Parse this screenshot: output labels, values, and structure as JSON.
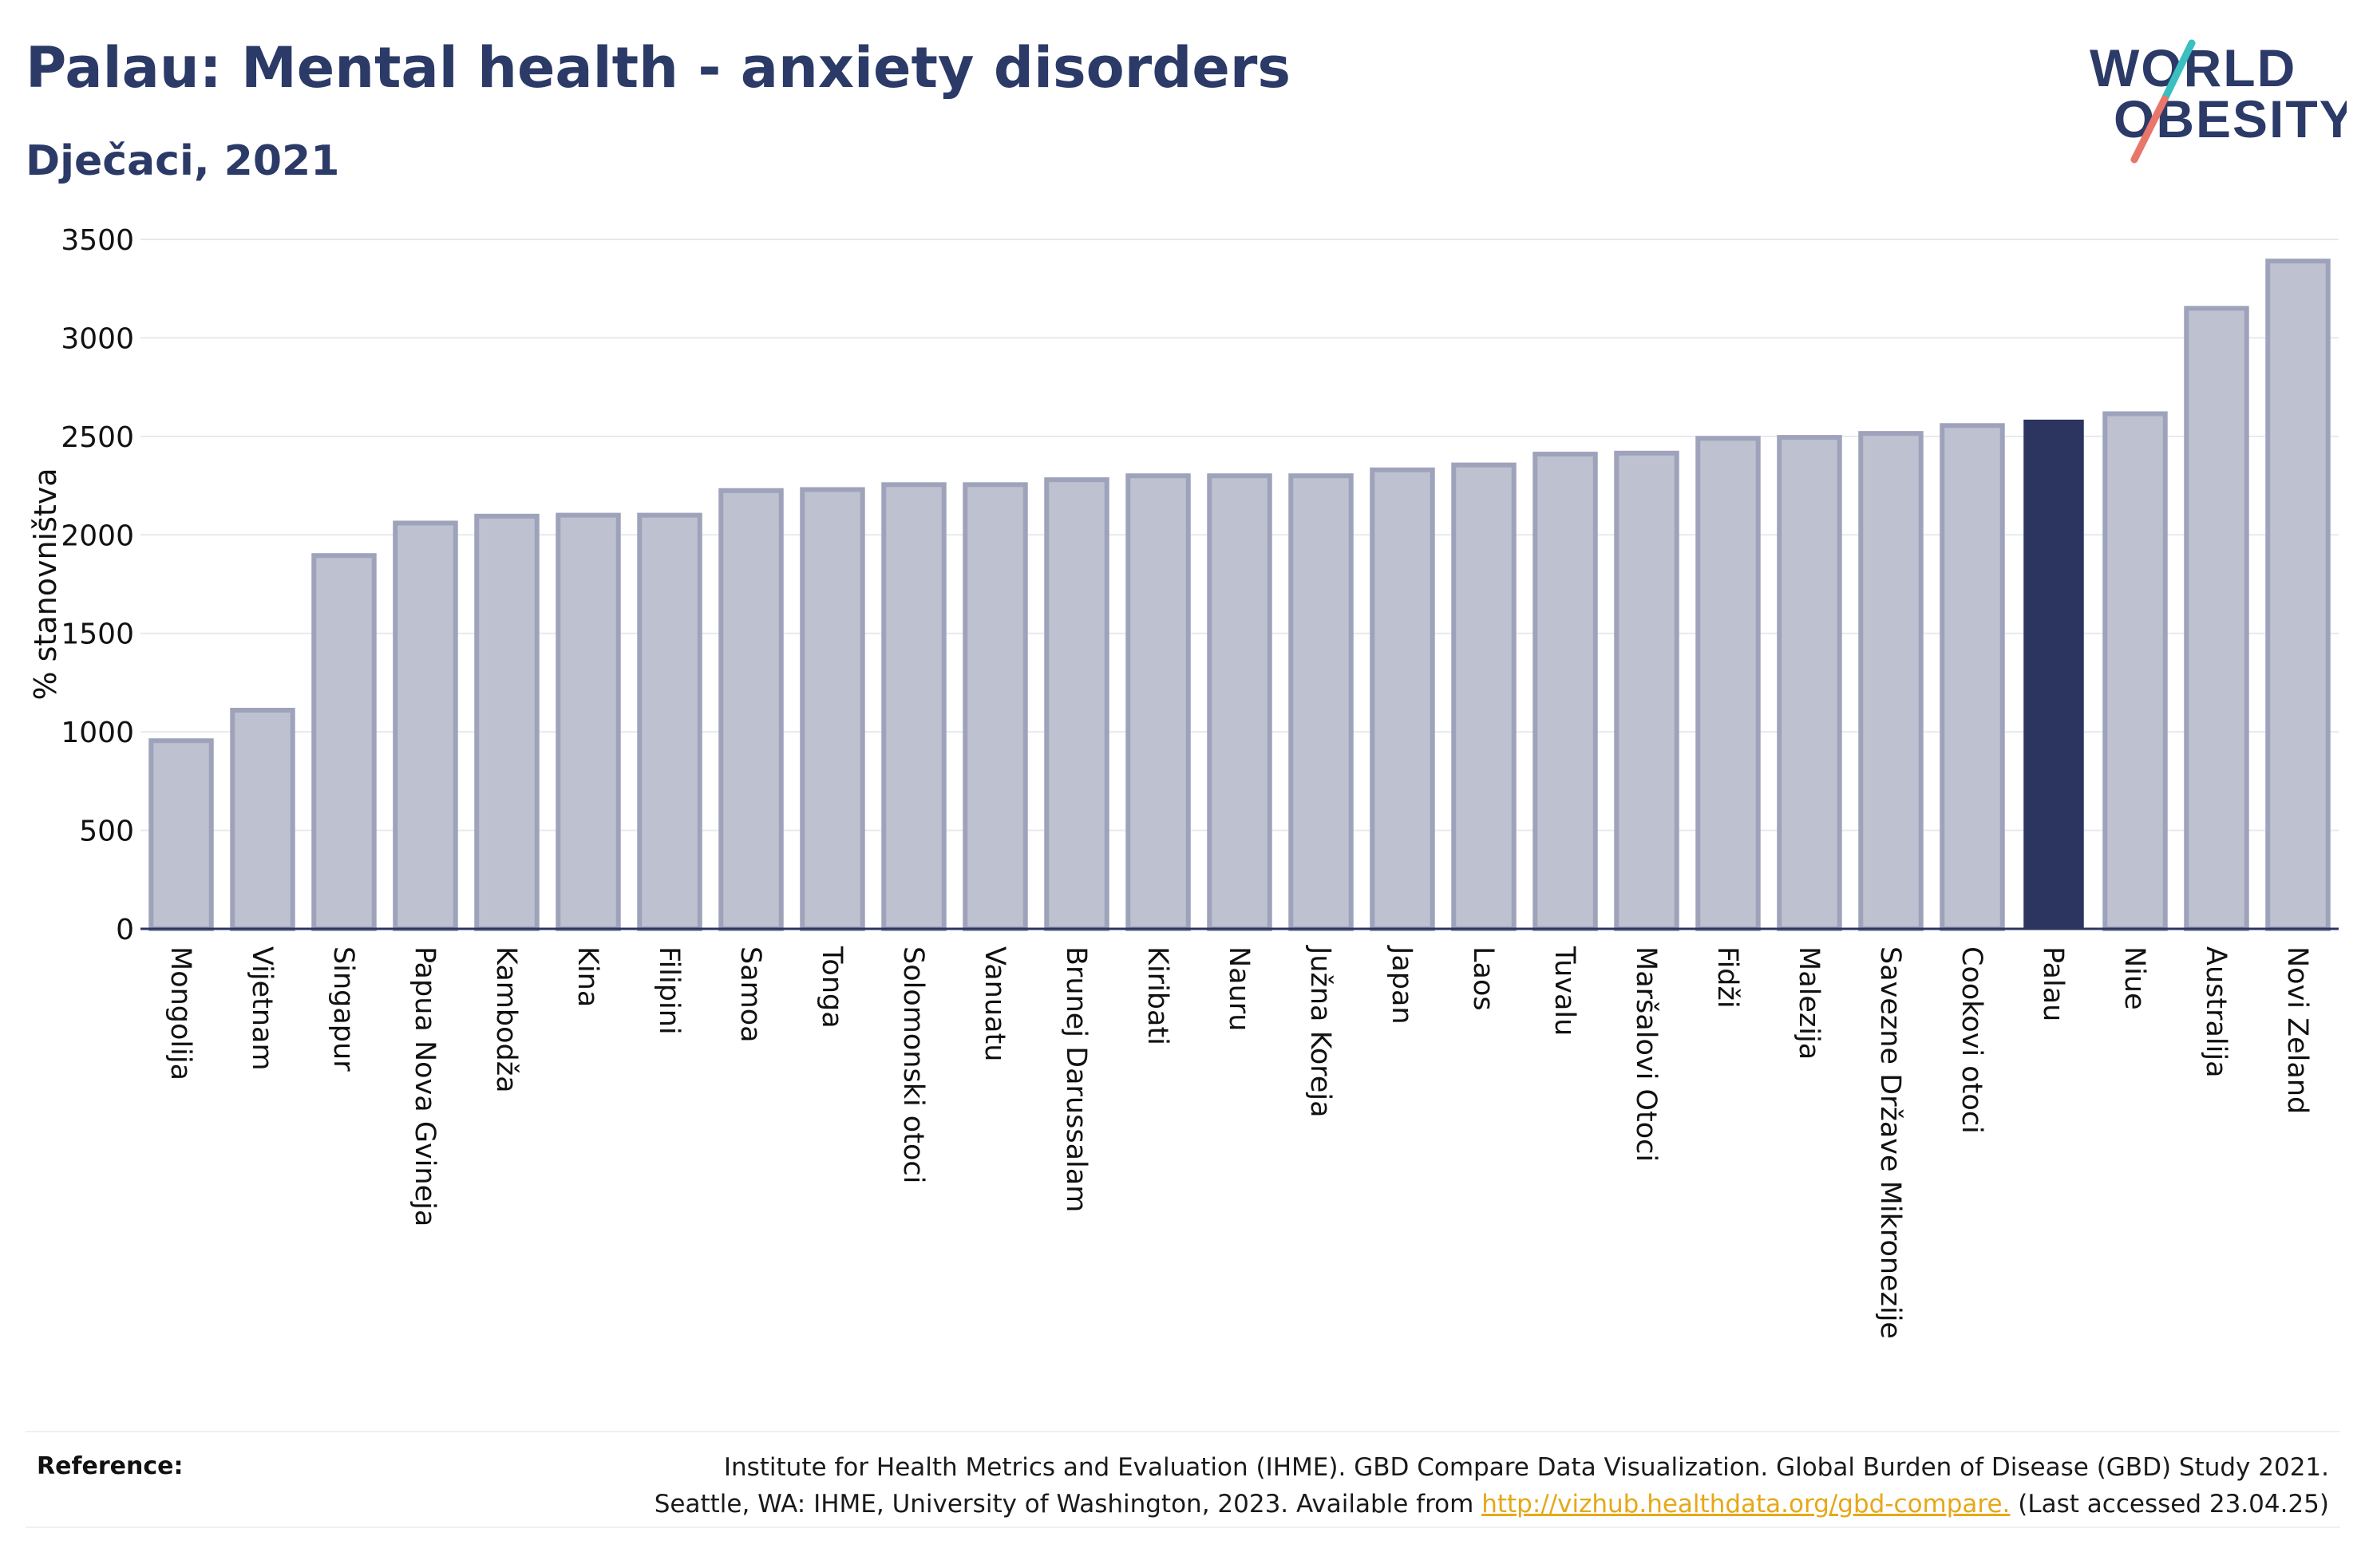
{
  "header": {
    "title": "Palau: Mental health - anxiety disorders",
    "subtitle": "Dječaci, 2021"
  },
  "logo": {
    "line1": "WORLD",
    "line2": "OBESITY"
  },
  "colors": {
    "bar_default_fill": "#bec1cf",
    "bar_default_stroke": "#9ea3bb",
    "bar_highlight": "#2b3560",
    "text_dark": "#2b3a67",
    "logo_teal": "#3bbfc0",
    "logo_coral": "#e8766a",
    "link": "#e6a817"
  },
  "chart_data": {
    "type": "bar",
    "title": "Palau: Mental health - anxiety disorders",
    "subtitle": "Dječaci, 2021",
    "xlabel": "",
    "ylabel": "% stanovništva",
    "ylim": [
      0,
      3500
    ],
    "yticks": [
      0,
      500,
      1000,
      1500,
      2000,
      2500,
      3000,
      3500
    ],
    "grid": true,
    "highlight": "Palau",
    "categories": [
      "Mongolija",
      "Vijetnam",
      "Singapur",
      "Papua Nova Gvineja",
      "Kambodža",
      "Kina",
      "Filipini",
      "Samoa",
      "Tonga",
      "Solomonski otoci",
      "Vanuatu",
      "Brunej Darussalam",
      "Kiribati",
      "Nauru",
      "Južna Koreja",
      "Japan",
      "Laos",
      "Tuvalu",
      "Maršalovi Otoci",
      "Fidži",
      "Malezija",
      "Savezne Države Mikronezije",
      "Cookovi otoci",
      "Palau",
      "Niue",
      "Australija",
      "Novi Zeland"
    ],
    "values": [
      955,
      1110,
      1895,
      2060,
      2095,
      2100,
      2100,
      2225,
      2230,
      2255,
      2255,
      2280,
      2300,
      2300,
      2300,
      2330,
      2355,
      2410,
      2415,
      2490,
      2495,
      2515,
      2555,
      2585,
      2615,
      3150,
      3390
    ]
  },
  "reference": {
    "label": "Reference:",
    "line1": "Institute for Health Metrics and Evaluation (IHME). GBD Compare Data Visualization. Global Burden of Disease (GBD) Study 2021.",
    "line2_prefix": "Seattle, WA: IHME, University of Washington, 2023. Available from ",
    "link_text": "http://vizhub.healthdata.org/gbd-compare.",
    "line2_suffix": " (Last accessed 23.04.25)"
  }
}
